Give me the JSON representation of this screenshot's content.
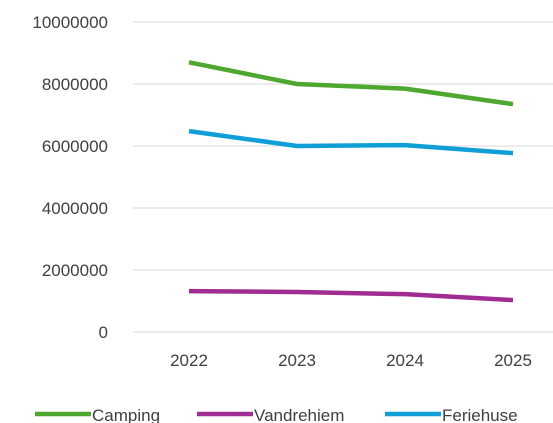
{
  "chart_data": {
    "type": "line",
    "categories": [
      "2022",
      "2023",
      "2024",
      "2025"
    ],
    "series": [
      {
        "name": "Camping",
        "color": "#4ea72e",
        "values": [
          8700000,
          8000000,
          7850000,
          7350000
        ]
      },
      {
        "name": "Vandrehiem",
        "color": "#a02b93",
        "values": [
          1320000,
          1290000,
          1220000,
          1030000
        ]
      },
      {
        "name": "Feriehuse",
        "color": "#0f9ed5",
        "values": [
          6480000,
          6000000,
          6030000,
          5770000
        ]
      }
    ],
    "ylim": [
      0,
      10000000
    ],
    "yticks": [
      0,
      2000000,
      4000000,
      6000000,
      8000000,
      10000000
    ],
    "grid": true,
    "legend": "bottom"
  }
}
